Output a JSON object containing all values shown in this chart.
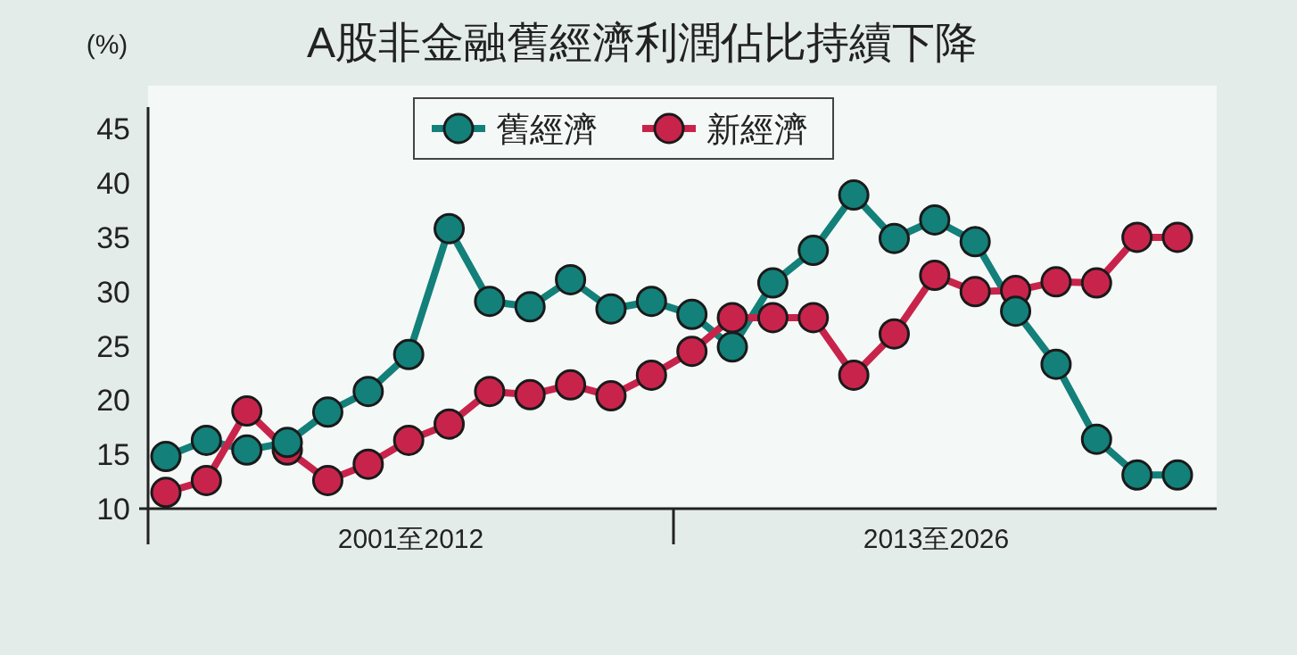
{
  "chart_data": {
    "type": "line",
    "title": "A股非金融舊經濟利潤佔比持續下降",
    "ylabel": "(%)",
    "categories": [
      null,
      null,
      null,
      null,
      null,
      null,
      null,
      null,
      null,
      null,
      null,
      null,
      null,
      null,
      null,
      null,
      null,
      null,
      null,
      null,
      null,
      null,
      null,
      null,
      null,
      null
    ],
    "series": [
      {
        "name": "舊經濟",
        "color": "#13807a",
        "values": [
          14.8,
          16.3,
          15.4,
          16.1,
          18.9,
          20.8,
          24.2,
          35.8,
          29.1,
          28.6,
          31.1,
          28.4,
          29.1,
          27.9,
          24.9,
          30.8,
          33.8,
          38.9,
          34.9,
          36.6,
          34.6,
          28.2,
          23.3,
          16.4,
          13.1,
          13.1
        ]
      },
      {
        "name": "新經濟",
        "color": "#c8244b",
        "values": [
          11.5,
          12.6,
          19.0,
          15.4,
          12.6,
          14.1,
          16.3,
          17.8,
          20.8,
          20.5,
          21.4,
          20.4,
          22.3,
          24.5,
          27.6,
          27.6,
          27.6,
          22.3,
          26.1,
          31.5,
          30.0,
          30.1,
          30.9,
          30.8,
          35.0,
          35.0
        ]
      }
    ],
    "annotations": [
      "2001至2012",
      "2013至2026"
    ],
    "ylim": [
      10,
      47
    ],
    "yticks": [
      10,
      15,
      20,
      25,
      30,
      35,
      40,
      45
    ],
    "grid": false,
    "legend": "top",
    "marker": "circle",
    "line_style": "solid"
  }
}
